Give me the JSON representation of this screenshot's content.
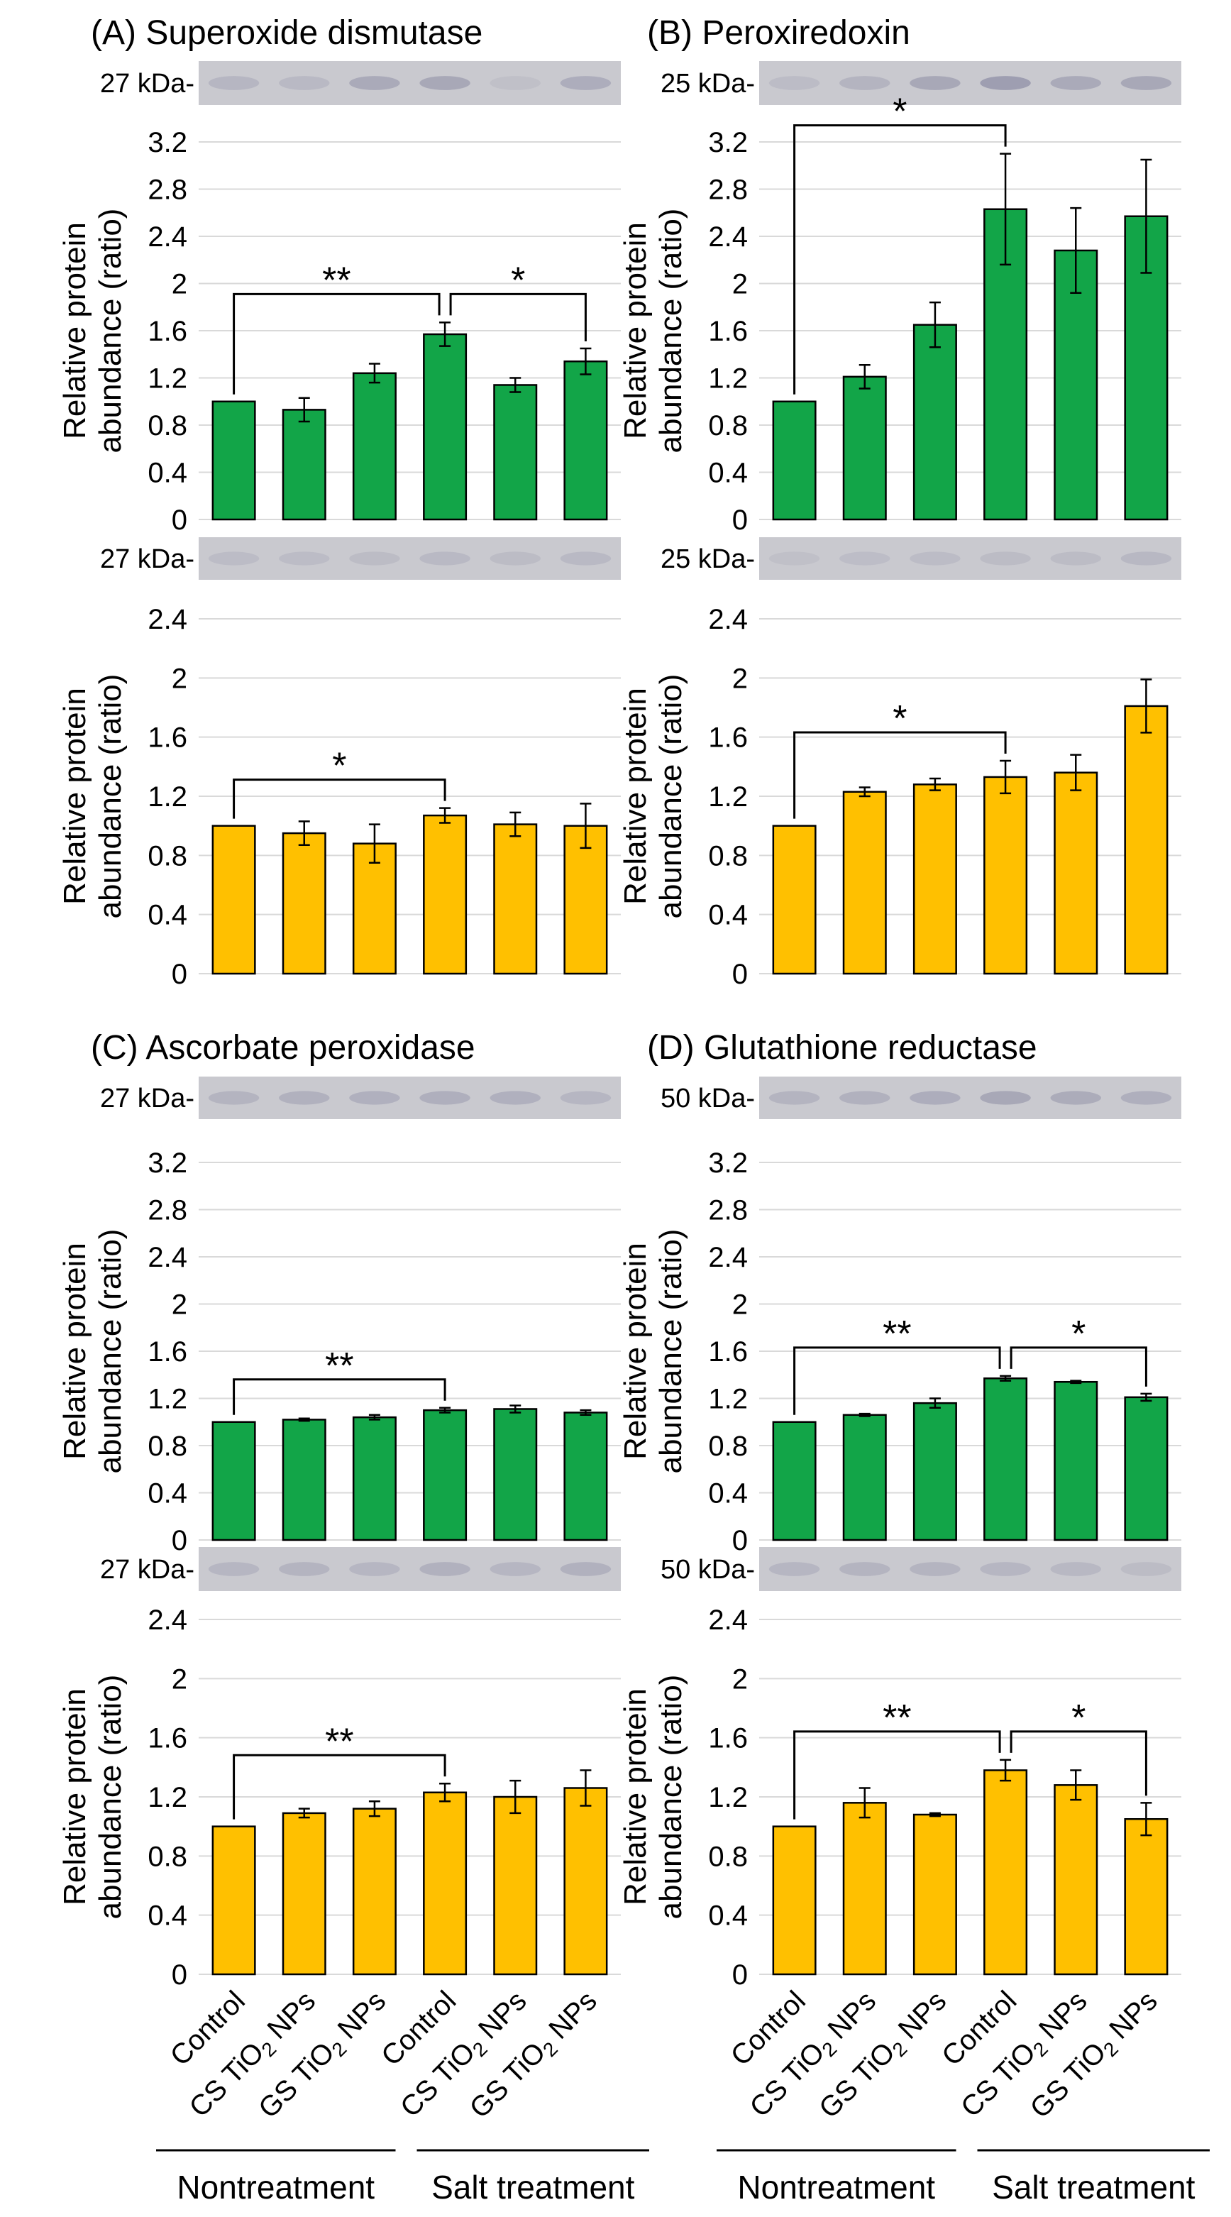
{
  "figure": {
    "x_categories": [
      "Control",
      "CS TiO2 NPs",
      "GS TiO2 NPs",
      "Control",
      "CS TiO2 NPs",
      "GS TiO2 NPs"
    ],
    "groups": [
      "Nontreatment",
      "Salt treatment"
    ],
    "ylabel_line1": "Relative protein",
    "ylabel_line2": "abundance (ratio)",
    "colors": {
      "green": "#12a548",
      "yellow": "#ffc000",
      "blot_bg": "#c9c9cf",
      "band": "#8c8ca4"
    }
  },
  "panels": [
    {
      "title": "(A) Superoxide dismutase",
      "kda": "27 kDa-"
    },
    {
      "title": "(B) Peroxiredoxin",
      "kda": "25 kDa-"
    },
    {
      "title": "(C) Ascorbate peroxidase",
      "kda": "27 kDa-"
    },
    {
      "title": "(D) Glutathione reductase",
      "kda": "50 kDa-"
    }
  ],
  "chart_data": [
    {
      "type": "bar",
      "panel": "A",
      "color": "green",
      "blot_label": "27 kDa-",
      "band_strength": [
        0.3,
        0.25,
        0.5,
        0.55,
        0.15,
        0.45
      ],
      "title": "(A) Superoxide dismutase",
      "xlabel": "",
      "ylabel": "Relative protein abundance (ratio)",
      "categories": [
        "Control",
        "CS TiO2 NPs",
        "GS TiO2 NPs",
        "Control",
        "CS TiO2 NPs",
        "GS TiO2 NPs"
      ],
      "values": [
        1.0,
        0.93,
        1.24,
        1.57,
        1.14,
        1.34
      ],
      "errors": [
        0.0,
        0.1,
        0.08,
        0.1,
        0.06,
        0.11
      ],
      "ylim": [
        0,
        3.2
      ],
      "yticks": [
        "0",
        "0.4",
        "0.8",
        "1.2",
        "1.6",
        "2",
        "2.4",
        "2.8",
        "3.2"
      ],
      "brackets": [
        {
          "from": 0,
          "to": 3,
          "label": "**"
        },
        {
          "from": 3,
          "to": 5,
          "label": "*"
        }
      ]
    },
    {
      "type": "bar",
      "panel": "A",
      "color": "yellow",
      "blot_label": "27 kDa-",
      "band_strength": [
        0.2,
        0.2,
        0.22,
        0.25,
        0.22,
        0.25
      ],
      "title": "",
      "xlabel": "",
      "ylabel": "Relative protein abundance (ratio)",
      "categories": [
        "Control",
        "CS TiO2 NPs",
        "GS TiO2 NPs",
        "Control",
        "CS TiO2 NPs",
        "GS TiO2 NPs"
      ],
      "values": [
        1.0,
        0.95,
        0.88,
        1.07,
        1.01,
        1.0
      ],
      "errors": [
        0.0,
        0.08,
        0.13,
        0.05,
        0.08,
        0.15
      ],
      "ylim": [
        0,
        2.4
      ],
      "yticks": [
        "0",
        "0.4",
        "0.8",
        "1.2",
        "1.6",
        "2",
        "2.4"
      ],
      "brackets": [
        {
          "from": 0,
          "to": 3,
          "label": "*"
        }
      ]
    },
    {
      "type": "bar",
      "panel": "B",
      "color": "green",
      "blot_label": "25 kDa-",
      "band_strength": [
        0.2,
        0.35,
        0.55,
        0.7,
        0.5,
        0.55
      ],
      "title": "(B) Peroxiredoxin",
      "xlabel": "",
      "ylabel": "Relative protein abundance (ratio)",
      "categories": [
        "Control",
        "CS TiO2 NPs",
        "GS TiO2 NPs",
        "Control",
        "CS TiO2 NPs",
        "GS TiO2 NPs"
      ],
      "values": [
        1.0,
        1.21,
        1.65,
        2.63,
        2.28,
        2.57
      ],
      "errors": [
        0.0,
        0.1,
        0.19,
        0.47,
        0.36,
        0.48
      ],
      "ylim": [
        0,
        3.2
      ],
      "yticks": [
        "0",
        "0.4",
        "0.8",
        "1.2",
        "1.6",
        "2",
        "2.4",
        "2.8",
        "3.2"
      ],
      "brackets": [
        {
          "from": 0,
          "to": 3,
          "label": "*"
        }
      ]
    },
    {
      "type": "bar",
      "panel": "B",
      "color": "yellow",
      "blot_label": "25 kDa-",
      "band_strength": [
        0.15,
        0.18,
        0.2,
        0.22,
        0.22,
        0.28
      ],
      "title": "",
      "xlabel": "",
      "ylabel": "Relative protein abundance (ratio)",
      "categories": [
        "Control",
        "CS TiO2 NPs",
        "GS TiO2 NPs",
        "Control",
        "CS TiO2 NPs",
        "GS TiO2 NPs"
      ],
      "values": [
        1.0,
        1.23,
        1.28,
        1.33,
        1.36,
        1.81
      ],
      "errors": [
        0.0,
        0.03,
        0.04,
        0.11,
        0.12,
        0.18
      ],
      "ylim": [
        0,
        2.4
      ],
      "yticks": [
        "0",
        "0.4",
        "0.8",
        "1.2",
        "1.6",
        "2",
        "2.4"
      ],
      "brackets": [
        {
          "from": 0,
          "to": 3,
          "label": "*"
        }
      ]
    },
    {
      "type": "bar",
      "panel": "C",
      "color": "green",
      "blot_label": "27 kDa-",
      "band_strength": [
        0.35,
        0.38,
        0.4,
        0.42,
        0.4,
        0.3
      ],
      "title": "(C) Ascorbate peroxidase",
      "xlabel": "",
      "ylabel": "Relative protein abundance (ratio)",
      "categories": [
        "Control",
        "CS TiO2 NPs",
        "GS TiO2 NPs",
        "Control",
        "CS TiO2 NPs",
        "GS TiO2 NPs"
      ],
      "values": [
        1.0,
        1.02,
        1.04,
        1.1,
        1.11,
        1.08
      ],
      "errors": [
        0.0,
        0.01,
        0.02,
        0.02,
        0.03,
        0.02
      ],
      "ylim": [
        0,
        3.2
      ],
      "yticks": [
        "0",
        "0.4",
        "0.8",
        "1.2",
        "1.6",
        "2",
        "2.4",
        "2.8",
        "3.2"
      ],
      "brackets": [
        {
          "from": 0,
          "to": 3,
          "label": "**"
        }
      ]
    },
    {
      "type": "bar",
      "panel": "C",
      "color": "yellow",
      "blot_label": "27 kDa-",
      "band_strength": [
        0.3,
        0.35,
        0.3,
        0.38,
        0.3,
        0.38
      ],
      "title": "",
      "xlabel": "",
      "ylabel": "Relative protein abundance (ratio)",
      "categories": [
        "Control",
        "CS TiO2 NPs",
        "GS TiO2 NPs",
        "Control",
        "CS TiO2 NPs",
        "GS TiO2 NPs"
      ],
      "values": [
        1.0,
        1.09,
        1.12,
        1.23,
        1.2,
        1.26
      ],
      "errors": [
        0.0,
        0.03,
        0.05,
        0.06,
        0.11,
        0.12
      ],
      "ylim": [
        0,
        2.4
      ],
      "yticks": [
        "0",
        "0.4",
        "0.8",
        "1.2",
        "1.6",
        "2",
        "2.4"
      ],
      "brackets": [
        {
          "from": 0,
          "to": 3,
          "label": "**"
        }
      ]
    },
    {
      "type": "bar",
      "panel": "D",
      "color": "green",
      "blot_label": "50 kDa-",
      "band_strength": [
        0.35,
        0.38,
        0.45,
        0.55,
        0.48,
        0.42
      ],
      "title": "(D) Glutathione reductase",
      "xlabel": "",
      "ylabel": "Relative protein abundance (ratio)",
      "categories": [
        "Control",
        "CS TiO2 NPs",
        "GS TiO2 NPs",
        "Control",
        "CS TiO2 NPs",
        "GS TiO2 NPs"
      ],
      "values": [
        1.0,
        1.06,
        1.16,
        1.37,
        1.34,
        1.21
      ],
      "errors": [
        0.0,
        0.01,
        0.04,
        0.02,
        0.01,
        0.03
      ],
      "ylim": [
        0,
        3.2
      ],
      "yticks": [
        "0",
        "0.4",
        "0.8",
        "1.2",
        "1.6",
        "2",
        "2.4",
        "2.8",
        "3.2"
      ],
      "brackets": [
        {
          "from": 0,
          "to": 3,
          "label": "**"
        },
        {
          "from": 3,
          "to": 5,
          "label": "*"
        }
      ]
    },
    {
      "type": "bar",
      "panel": "D",
      "color": "yellow",
      "blot_label": "50 kDa-",
      "band_strength": [
        0.3,
        0.35,
        0.35,
        0.3,
        0.28,
        0.22
      ],
      "title": "",
      "xlabel": "",
      "ylabel": "Relative protein abundance (ratio)",
      "categories": [
        "Control",
        "CS TiO2 NPs",
        "GS TiO2 NPs",
        "Control",
        "CS TiO2 NPs",
        "GS TiO2 NPs"
      ],
      "values": [
        1.0,
        1.16,
        1.08,
        1.38,
        1.28,
        1.05
      ],
      "errors": [
        0.0,
        0.1,
        0.01,
        0.07,
        0.1,
        0.11
      ],
      "ylim": [
        0,
        2.4
      ],
      "yticks": [
        "0",
        "0.4",
        "0.8",
        "1.2",
        "1.6",
        "2",
        "2.4"
      ],
      "brackets": [
        {
          "from": 0,
          "to": 3,
          "label": "**"
        },
        {
          "from": 3,
          "to": 5,
          "label": "*"
        }
      ]
    }
  ]
}
